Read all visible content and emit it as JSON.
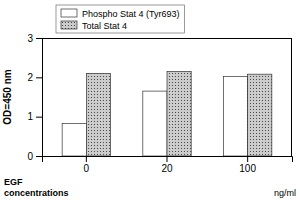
{
  "chart_data": {
    "type": "bar",
    "categories": [
      "0",
      "20",
      "100"
    ],
    "series": [
      {
        "name": "Phospho Stat 4 (Tyr693)",
        "color": "white",
        "values": [
          0.83,
          1.65,
          2.02
        ]
      },
      {
        "name": "Total Stat 4",
        "color": "#cccccc",
        "values": [
          2.1,
          2.15,
          2.08
        ]
      }
    ],
    "y_label": "OD=450 nm",
    "x_label": "EGF\nconcentrations",
    "annotations": [
      "ng/ml"
    ],
    "ylim": [
      0,
      3
    ],
    "yticks": [
      0,
      1,
      2,
      3
    ],
    "grid": false,
    "legend": "top"
  }
}
